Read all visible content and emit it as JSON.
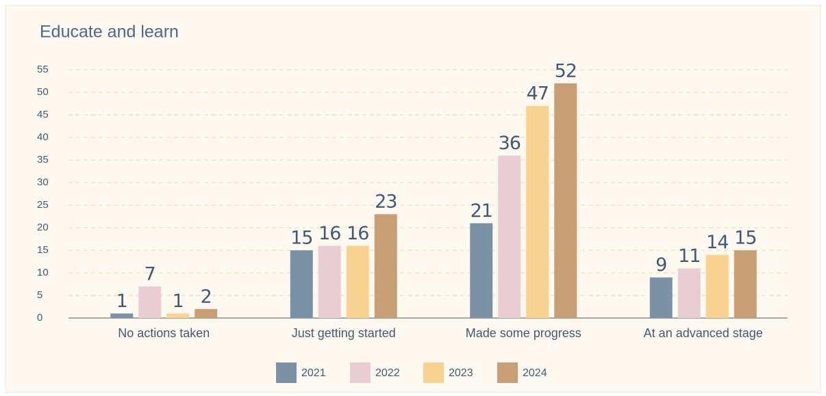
{
  "chart_data": {
    "type": "bar",
    "title": "Educate and learn",
    "categories": [
      "No actions taken",
      "Just getting started",
      "Made some progress",
      "At an advanced stage"
    ],
    "series": [
      {
        "name": "2021",
        "color": "#7b91a5",
        "values": [
          1,
          15,
          21,
          9
        ]
      },
      {
        "name": "2022",
        "color": "#e9cdd3",
        "values": [
          7,
          16,
          36,
          11
        ]
      },
      {
        "name": "2023",
        "color": "#f9d28f",
        "values": [
          1,
          16,
          47,
          14
        ]
      },
      {
        "name": "2024",
        "color": "#c99e74",
        "values": [
          2,
          23,
          52,
          15
        ]
      }
    ],
    "ylim": [
      0,
      55
    ],
    "yticks": [
      0,
      5,
      10,
      15,
      20,
      25,
      30,
      35,
      40,
      45,
      50,
      55
    ],
    "grid": true
  }
}
